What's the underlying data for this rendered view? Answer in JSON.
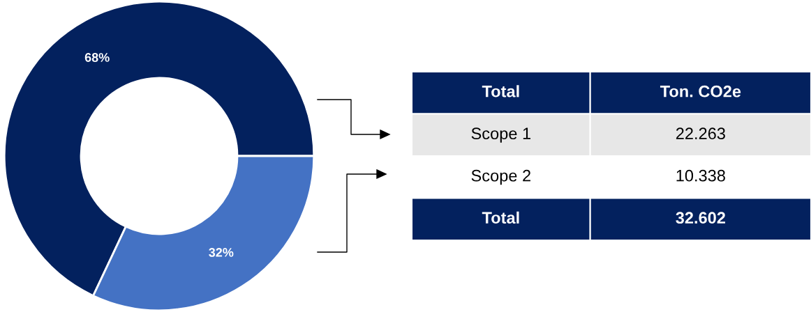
{
  "chart_data": [
    {
      "type": "donut",
      "categories": [
        null,
        null
      ],
      "values": [
        68,
        32
      ],
      "colors": [
        "#03215e",
        "#4472c4"
      ],
      "value_labels": [
        "68%",
        "32%"
      ]
    },
    {
      "type": "other",
      "annotations": [
        "Total",
        "Ton. CO2e",
        "Scope 1",
        "22.263",
        "Scope 2",
        "10.338",
        "Total",
        "32.602"
      ]
    }
  ]
}
